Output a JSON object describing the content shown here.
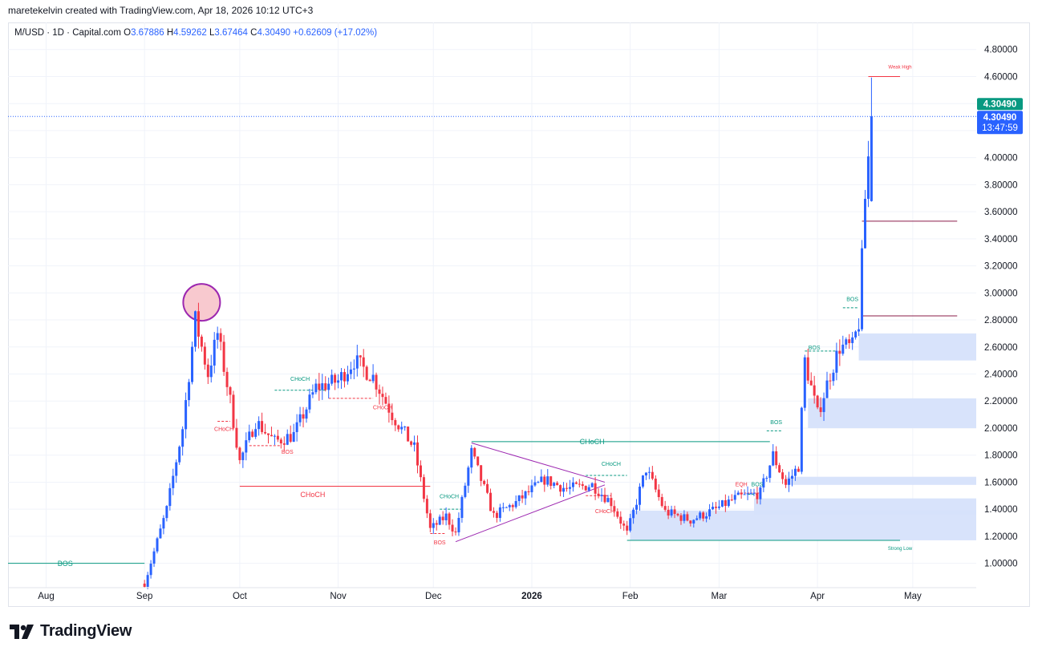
{
  "header": {
    "credit": "maretekelvin created with TradingView.com, Apr 18, 2026 10:12 UTC+3"
  },
  "legend": {
    "symbol": "M/USD · 1D · Capital.com",
    "o_label": "O",
    "o_value": "3.67886",
    "h_label": "H",
    "h_value": "4.59262",
    "l_label": "L",
    "l_value": "3.67464",
    "c_label": "C",
    "c_value": "4.30490",
    "change": "+0.62609 (+17.02%)"
  },
  "price_tags": {
    "last_price": "4.30490",
    "last_price2": "4.30490",
    "countdown": "13:47:59"
  },
  "logo": {
    "text": "TradingView"
  },
  "colors": {
    "up": "#2962ff",
    "down": "#f23645",
    "green": "#089981",
    "purple": "#9c27b0",
    "zone": "#d6e2fb",
    "grid": "#f0f3fa"
  },
  "chart_data": {
    "type": "candlestick",
    "title": "M/USD · 1D · Capital.com",
    "ylim": [
      0.82,
      5.0
    ],
    "y_ticks": [
      "4.80000",
      "4.60000",
      "4.40000",
      "4.20000",
      "4.00000",
      "3.80000",
      "3.60000",
      "3.40000",
      "3.20000",
      "3.00000",
      "2.80000",
      "2.60000",
      "2.40000",
      "2.20000",
      "2.00000",
      "1.80000",
      "1.60000",
      "1.40000",
      "1.20000",
      "1.00000"
    ],
    "x_ticks": [
      "Aug",
      "Sep",
      "Oct",
      "Nov",
      "Dec",
      "2026",
      "Feb",
      "Mar",
      "Apr",
      "May"
    ],
    "x_range": [
      "2025-07-20",
      "2026-05-21"
    ],
    "key_points": [
      {
        "date": "2025-09-01",
        "price": 0.85
      },
      {
        "date": "2025-09-08",
        "price": 1.4
      },
      {
        "date": "2025-09-13",
        "price": 2.0
      },
      {
        "date": "2025-09-17",
        "price": 2.8
      },
      {
        "date": "2025-09-21",
        "price": 2.4
      },
      {
        "date": "2025-09-24",
        "price": 2.7
      },
      {
        "date": "2025-09-28",
        "price": 2.2
      },
      {
        "date": "2025-10-01",
        "price": 1.75
      },
      {
        "date": "2025-10-06",
        "price": 2.05
      },
      {
        "date": "2025-10-12",
        "price": 1.9
      },
      {
        "date": "2025-10-18",
        "price": 1.95
      },
      {
        "date": "2025-10-25",
        "price": 2.3
      },
      {
        "date": "2025-11-01",
        "price": 2.35
      },
      {
        "date": "2025-11-06",
        "price": 2.5
      },
      {
        "date": "2025-11-12",
        "price": 2.38
      },
      {
        "date": "2025-11-18",
        "price": 2.1
      },
      {
        "date": "2025-11-25",
        "price": 1.85
      },
      {
        "date": "2025-11-30",
        "price": 1.25
      },
      {
        "date": "2025-12-05",
        "price": 1.35
      },
      {
        "date": "2025-12-08",
        "price": 1.22
      },
      {
        "date": "2025-12-13",
        "price": 1.82
      },
      {
        "date": "2025-12-20",
        "price": 1.35
      },
      {
        "date": "2025-12-27",
        "price": 1.45
      },
      {
        "date": "2026-01-05",
        "price": 1.62
      },
      {
        "date": "2026-01-12",
        "price": 1.55
      },
      {
        "date": "2026-01-20",
        "price": 1.58
      },
      {
        "date": "2026-01-26",
        "price": 1.45
      },
      {
        "date": "2026-01-31",
        "price": 1.22
      },
      {
        "date": "2026-02-06",
        "price": 1.7
      },
      {
        "date": "2026-02-12",
        "price": 1.38
      },
      {
        "date": "2026-02-20",
        "price": 1.32
      },
      {
        "date": "2026-02-28",
        "price": 1.4
      },
      {
        "date": "2026-03-06",
        "price": 1.48
      },
      {
        "date": "2026-03-14",
        "price": 1.52
      },
      {
        "date": "2026-03-18",
        "price": 1.8
      },
      {
        "date": "2026-03-22",
        "price": 1.58
      },
      {
        "date": "2026-03-26",
        "price": 1.72
      },
      {
        "date": "2026-03-28",
        "price": 2.5
      },
      {
        "date": "2026-04-01",
        "price": 2.1
      },
      {
        "date": "2026-04-05",
        "price": 2.4
      },
      {
        "date": "2026-04-08",
        "price": 2.6
      },
      {
        "date": "2026-04-12",
        "price": 2.6
      },
      {
        "date": "2026-04-14",
        "price": 2.78
      },
      {
        "date": "2026-04-16",
        "price": 3.7
      },
      {
        "date": "2026-04-18",
        "price": 4.3
      }
    ],
    "last": {
      "date": "2026-04-18",
      "open": 3.67886,
      "high": 4.59262,
      "low": 3.67464,
      "close": 4.3049
    },
    "annotations": {
      "labels": [
        {
          "text": "BOS",
          "date": "2025-08-07",
          "price": 0.98,
          "color": "green",
          "size": 9
        },
        {
          "text": "CHoCH",
          "date": "2025-09-26",
          "price": 1.98,
          "color": "red",
          "size": 7
        },
        {
          "text": "BOS",
          "date": "2025-10-16",
          "price": 1.81,
          "color": "red",
          "size": 7
        },
        {
          "text": "CHoCH",
          "date": "2025-10-20",
          "price": 2.35,
          "color": "green",
          "size": 7
        },
        {
          "text": "CHoCH",
          "date": "2025-11-15",
          "price": 2.14,
          "color": "red",
          "size": 7
        },
        {
          "text": "CHoCH",
          "date": "2025-10-24",
          "price": 1.49,
          "color": "red",
          "size": 9
        },
        {
          "text": "CHoCH",
          "date": "2025-12-06",
          "price": 1.48,
          "color": "green",
          "size": 7
        },
        {
          "text": "BOS",
          "date": "2025-12-03",
          "price": 1.14,
          "color": "red",
          "size": 7
        },
        {
          "text": "CHoCH",
          "date": "2026-01-20",
          "price": 1.88,
          "color": "green",
          "size": 9
        },
        {
          "text": "CHoCH",
          "date": "2026-01-26",
          "price": 1.72,
          "color": "green",
          "size": 7
        },
        {
          "text": "CHoCH",
          "date": "2026-01-24",
          "price": 1.37,
          "color": "red",
          "size": 7
        },
        {
          "text": "EQH",
          "date": "2026-03-08",
          "price": 1.57,
          "color": "red",
          "size": 7
        },
        {
          "text": "BOS",
          "date": "2026-03-13",
          "price": 1.57,
          "color": "green",
          "size": 7
        },
        {
          "text": "BOS",
          "date": "2026-03-19",
          "price": 2.03,
          "color": "green",
          "size": 7
        },
        {
          "text": "BOS",
          "date": "2026-03-31",
          "price": 2.58,
          "color": "green",
          "size": 7
        },
        {
          "text": "BOS",
          "date": "2026-04-12",
          "price": 2.94,
          "color": "green",
          "size": 7
        },
        {
          "text": "Weak High",
          "date": "2026-04-27",
          "price": 4.66,
          "color": "red",
          "size": 6
        },
        {
          "text": "Strong Low",
          "date": "2026-04-27",
          "price": 1.1,
          "color": "green",
          "size": 6
        }
      ]
    }
  }
}
